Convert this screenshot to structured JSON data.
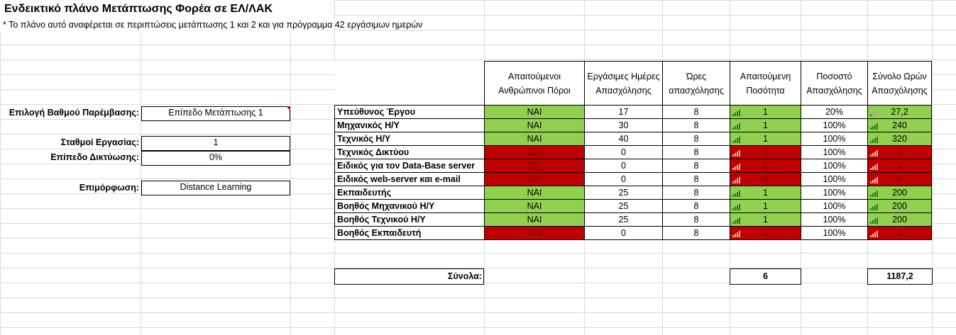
{
  "title": "Ενδεικτικό πλάνο Μετάπτωσης Φορέα σε ΕΛ/ΛΑΚ",
  "subtitle": "* Το πλάνο αυτό αναφέρεται σε περιπτώσεις μετάπτωσης 1 και 2 και για πρόγραμμα 42 εργάσιμων ημερών",
  "inputs": {
    "intervention_label": "Επιλογή Βαθμού Παρέμβασης:",
    "intervention_value": "Επίπεδο Μετάπτωσης 1",
    "workstations_label": "Σταθμοί Εργασίας:",
    "workstations_value": "1",
    "networking_label": "Επίπεδο Δικτύωσης:",
    "networking_value": "0%",
    "training_label": "Επιμόρφωση:",
    "training_value": "Distance Learning"
  },
  "table": {
    "headers": {
      "resources": "Απαιτούμενοι Ανθρώπινοι Πόροι",
      "days": "Εργάσιμες Ημέρες Απασχόλησης",
      "hours": "Ώρες απασχόλησης",
      "quantity": "Απαιτούμενη Ποσότητα",
      "percent": "Ποσοστό Απασχόλησης",
      "total": "Σύνολο Ωρών Απασχόλησης"
    },
    "rows": [
      {
        "role": "Υπεύθυνος Έργου",
        "req": "ΝΑΙ",
        "days": "17",
        "hours": "8",
        "qty": "1",
        "pct": "20%",
        "total": "27,2"
      },
      {
        "role": "Μηχανικός Η/Υ",
        "req": "ΝΑΙ",
        "days": "30",
        "hours": "8",
        "qty": "1",
        "pct": "100%",
        "total": "240"
      },
      {
        "role": "Τεχνικός Η/Υ",
        "req": "ΝΑΙ",
        "days": "40",
        "hours": "8",
        "qty": "1",
        "pct": "100%",
        "total": "320"
      },
      {
        "role": "Τεχνικός Δικτύου",
        "req": "ΟΧΙ",
        "days": "0",
        "hours": "8",
        "qty": "0",
        "pct": "100%",
        "total": "0"
      },
      {
        "role": "Ειδικός για τον Data-Base server",
        "req": "ΟΧΙ",
        "days": "0",
        "hours": "8",
        "qty": "0",
        "pct": "100%",
        "total": "0"
      },
      {
        "role": "Ειδικός web-server και e-mail",
        "req": "ΟΧΙ",
        "days": "0",
        "hours": "8",
        "qty": "0",
        "pct": "100%",
        "total": "0"
      },
      {
        "role": "Εκπαιδευτής",
        "req": "ΝΑΙ",
        "days": "25",
        "hours": "8",
        "qty": "1",
        "pct": "100%",
        "total": "200"
      },
      {
        "role": "Βοηθός Μηχανικού Η/Υ",
        "req": "ΝΑΙ",
        "days": "25",
        "hours": "8",
        "qty": "1",
        "pct": "100%",
        "total": "200"
      },
      {
        "role": "Βοηθός Τεχνικού Η/Υ",
        "req": "ΝΑΙ",
        "days": "25",
        "hours": "8",
        "qty": "1",
        "pct": "100%",
        "total": "200"
      },
      {
        "role": "Βοηθός Εκπαιδευτή",
        "req": "ΟΧΙ",
        "days": "0",
        "hours": "8",
        "qty": "0",
        "pct": "100%",
        "total": "0"
      }
    ],
    "totals_label": "Σύνολα:",
    "totals_qty": "6",
    "totals_hours": "1187,2"
  },
  "colors": {
    "yes": "#92d050",
    "no": "#c00000"
  },
  "icons": {
    "quantity": "signal-bars-icon",
    "total": "signal-bars-icon"
  }
}
